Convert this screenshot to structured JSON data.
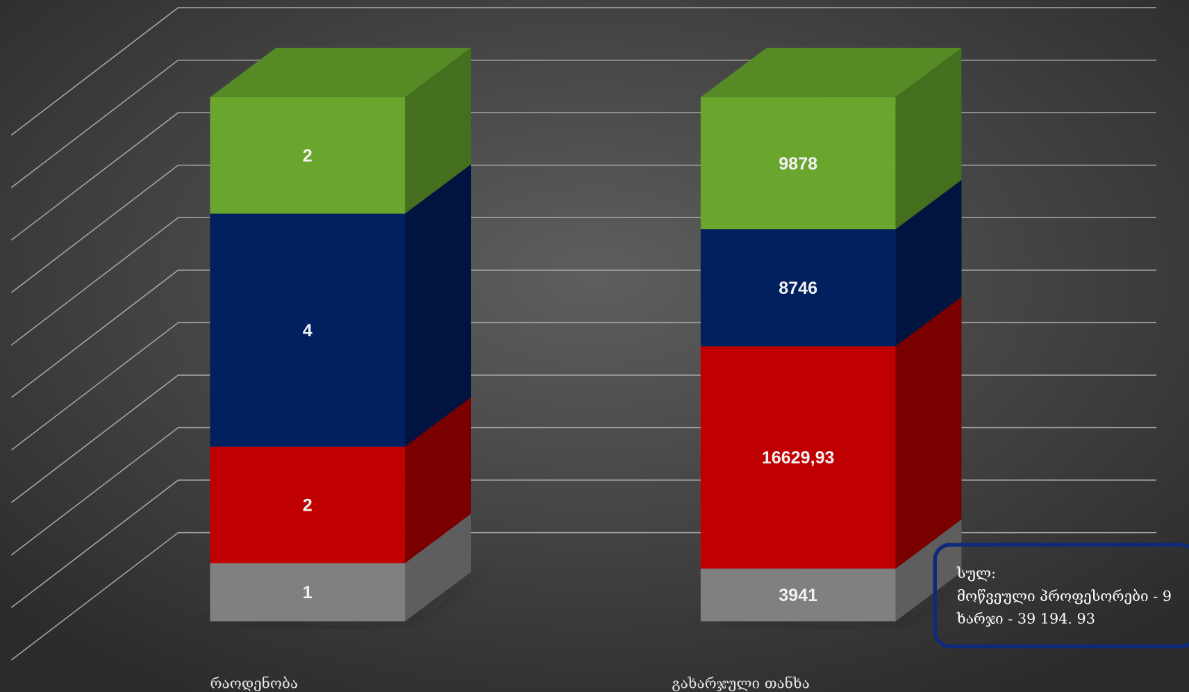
{
  "chart_data": {
    "type": "bar3d",
    "stacking": "percent",
    "categories": [
      "რაოდენობა",
      "გახარჯული თანხა"
    ],
    "series": [
      {
        "color": "#808080",
        "side": "#5e5e5e",
        "values": [
          1,
          3941
        ]
      },
      {
        "color": "#c00000",
        "side": "#7a0000",
        "values": [
          2,
          16629.93
        ],
        "value_labels": [
          "2",
          "16629,93"
        ]
      },
      {
        "color": "#002060",
        "side": "#00143f",
        "values": [
          4,
          8746
        ]
      },
      {
        "color": "#6aa52e",
        "side": "#446f1e",
        "top": "#568a24",
        "values": [
          2,
          9878
        ]
      }
    ],
    "grid": true,
    "annotation": [
      "სულ:",
      "მოწვეული პროფესორები - 9",
      "ხარჯი - 39 194. 93"
    ]
  }
}
